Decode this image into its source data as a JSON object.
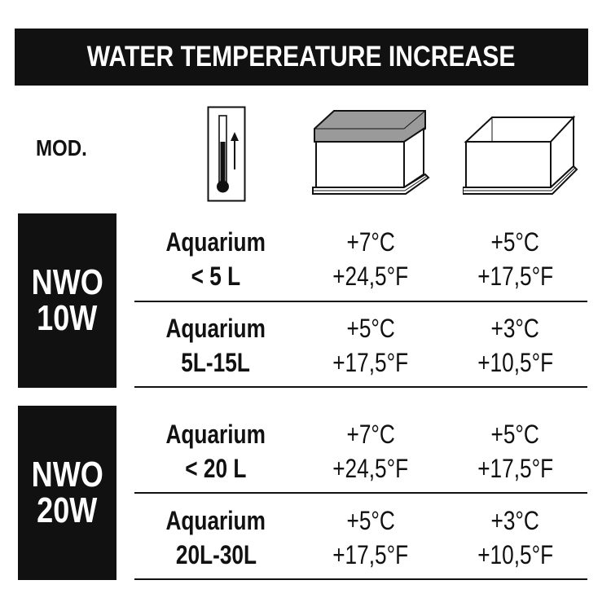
{
  "header": {
    "title": "WATER TEMPEREATURE INCREASE"
  },
  "columns": {
    "model_label": "MOD.",
    "icons": [
      "thermometer-up-icon",
      "covered-aquarium-icon",
      "open-aquarium-icon"
    ]
  },
  "models": [
    {
      "name_line1": "NWO",
      "name_line2": "10W",
      "rows": [
        {
          "aquarium": "Aquarium",
          "size": "< 5 L",
          "covered_c": "+7°C",
          "covered_f": "+24,5°F",
          "open_c": "+5°C",
          "open_f": "+17,5°F"
        },
        {
          "aquarium": "Aquarium",
          "size": "5L-15L",
          "covered_c": "+5°C",
          "covered_f": "+17,5°F",
          "open_c": "+3°C",
          "open_f": "+10,5°F"
        }
      ]
    },
    {
      "name_line1": "NWO",
      "name_line2": "20W",
      "rows": [
        {
          "aquarium": "Aquarium",
          "size": "< 20 L",
          "covered_c": "+7°C",
          "covered_f": "+24,5°F",
          "open_c": "+5°C",
          "open_f": "+17,5°F"
        },
        {
          "aquarium": "Aquarium",
          "size": "20L-30L",
          "covered_c": "+5°C",
          "covered_f": "+17,5°F",
          "open_c": "+3°C",
          "open_f": "+10,5°F"
        }
      ]
    }
  ],
  "colors": {
    "ink": "#111111",
    "background": "#ffffff",
    "lid": "#9a9a9a"
  }
}
